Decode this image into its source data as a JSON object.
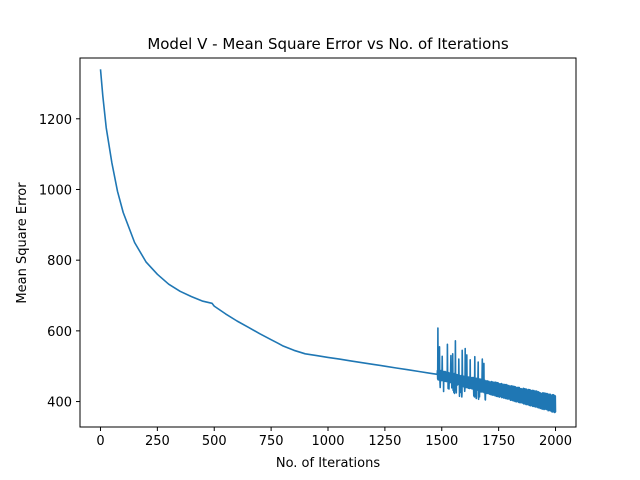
{
  "chart_data": {
    "type": "line",
    "title": "Model V - Mean Square Error vs No. of Iterations",
    "xlabel": "No. of Iterations",
    "ylabel": "Mean Square Error",
    "xlim": [
      -90,
      2090
    ],
    "ylim": [
      328,
      1372
    ],
    "xticks": [
      0,
      250,
      500,
      750,
      1000,
      1250,
      1500,
      1750,
      2000
    ],
    "yticks": [
      400,
      600,
      800,
      1000,
      1200
    ],
    "grid": false,
    "legend": "none",
    "color": "#1f77b4",
    "series": [
      {
        "x": [
          0,
          10,
          25,
          50,
          75,
          100,
          150,
          200,
          250,
          300,
          350,
          400,
          450,
          490,
          500,
          550,
          600,
          650,
          700,
          750,
          780,
          800,
          850,
          900,
          950,
          1000,
          1050,
          1100,
          1150,
          1200,
          1250,
          1300,
          1350,
          1400,
          1450,
          1480
        ],
        "values": [
          1340,
          1265,
          1175,
          1075,
          995,
          935,
          850,
          795,
          760,
          732,
          712,
          697,
          684,
          678,
          670,
          648,
          628,
          610,
          592,
          575,
          565,
          558,
          545,
          535,
          530,
          525,
          520,
          515,
          510,
          505,
          500,
          495,
          490,
          485,
          480,
          477
        ]
      }
    ],
    "noisy_segment": {
      "x_start": 1480,
      "x_end": 2000,
      "upper_start": 490,
      "upper_end": 418,
      "lower_start": 462,
      "lower_end": 368,
      "spikes": [
        {
          "x": 1483,
          "y": 608
        },
        {
          "x": 1490,
          "y": 555
        },
        {
          "x": 1502,
          "y": 528
        },
        {
          "x": 1525,
          "y": 562
        },
        {
          "x": 1540,
          "y": 530
        },
        {
          "x": 1548,
          "y": 535
        },
        {
          "x": 1560,
          "y": 572
        },
        {
          "x": 1575,
          "y": 520
        },
        {
          "x": 1590,
          "y": 545
        },
        {
          "x": 1603,
          "y": 550
        },
        {
          "x": 1610,
          "y": 532
        },
        {
          "x": 1625,
          "y": 518
        },
        {
          "x": 1645,
          "y": 527
        },
        {
          "x": 1660,
          "y": 512
        },
        {
          "x": 1678,
          "y": 520
        },
        {
          "x": 1685,
          "y": 508
        }
      ]
    }
  }
}
